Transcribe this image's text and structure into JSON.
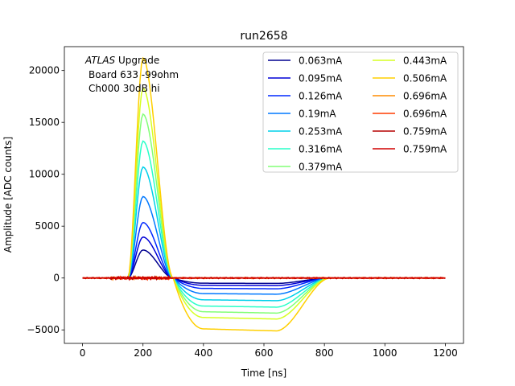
{
  "chart_data": {
    "type": "line",
    "title": "run2658",
    "xlabel": "Time [ns]",
    "ylabel": "Amplitude [ADC counts]",
    "xlim": [
      -60,
      1260
    ],
    "ylim": [
      -6300,
      22300
    ],
    "xticks": [
      0,
      200,
      400,
      600,
      800,
      1000,
      1200
    ],
    "yticks": [
      -5000,
      0,
      5000,
      10000,
      15000,
      20000
    ],
    "legend_position": "top-right",
    "legend_columns": 2,
    "annotation": {
      "line1_italic": "ATLAS",
      "line1_rest": " Upgrade",
      "line2": "Board 633 -99ohm",
      "line3": "Ch000 30dB hi"
    },
    "pulse_model": {
      "baseline_until_ns": 150,
      "peak_time_ns": 200,
      "zero_cross_ns": 300,
      "undershoot_flat_from_ns": 400,
      "recovery_start_ns": 640,
      "recovery_end_ns": 820,
      "end_ns": 1200
    },
    "series": [
      {
        "name": "0.063mA",
        "color": "#00008f",
        "peak": 2700,
        "undershoot": -500,
        "saturated": false
      },
      {
        "name": "0.095mA",
        "color": "#0000d6",
        "peak": 3950,
        "undershoot": -700,
        "saturated": false
      },
      {
        "name": "0.126mA",
        "color": "#0028ff",
        "peak": 5350,
        "undershoot": -1000,
        "saturated": false
      },
      {
        "name": "0.19mA",
        "color": "#0078ff",
        "peak": 7850,
        "undershoot": -1500,
        "saturated": false
      },
      {
        "name": "0.253mA",
        "color": "#00d0ea",
        "peak": 10700,
        "undershoot": -2100,
        "saturated": false
      },
      {
        "name": "0.316mA",
        "color": "#28ffc8",
        "peak": 13200,
        "undershoot": -2700,
        "saturated": false
      },
      {
        "name": "0.379mA",
        "color": "#82ff76",
        "peak": 15800,
        "undershoot": -3250,
        "saturated": false
      },
      {
        "name": "0.443mA",
        "color": "#d6ff22",
        "peak": 18300,
        "undershoot": -3800,
        "saturated": false
      },
      {
        "name": "0.506mA",
        "color": "#ffcf00",
        "peak": 21200,
        "undershoot": -4900,
        "saturated": false
      },
      {
        "name": "0.696mA",
        "color": "#ff8c00",
        "peak": 0,
        "undershoot": 0,
        "saturated": true
      },
      {
        "name": "0.696mA",
        "color": "#ff3b00",
        "peak": 0,
        "undershoot": 0,
        "saturated": true
      },
      {
        "name": "0.759mA",
        "color": "#b50000",
        "peak": 0,
        "undershoot": 0,
        "saturated": true
      },
      {
        "name": "0.759mA",
        "color": "#d10000",
        "peak": 0,
        "undershoot": 0,
        "saturated": true
      }
    ]
  }
}
